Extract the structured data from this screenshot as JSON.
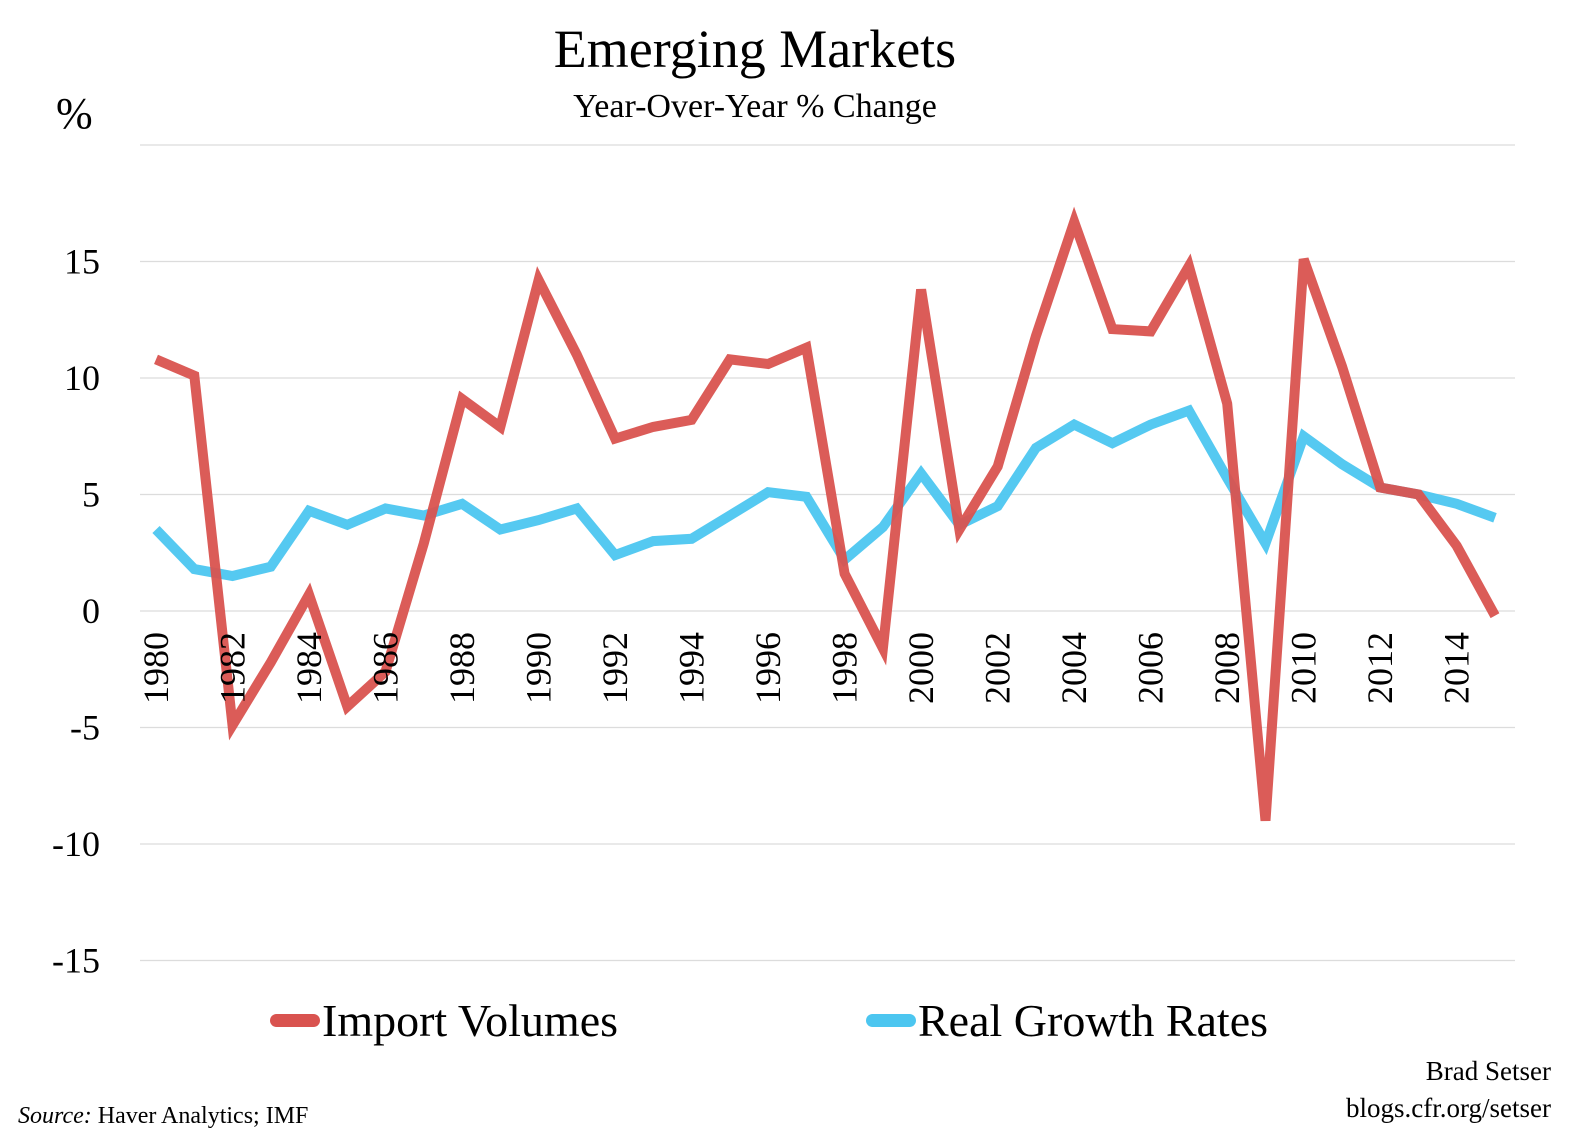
{
  "chart_data": {
    "type": "line",
    "title": "Emerging Markets",
    "subtitle": "Year-Over-Year % Change",
    "ylabel": "%",
    "xlabel": "",
    "x": [
      1980,
      1981,
      1982,
      1983,
      1984,
      1985,
      1986,
      1987,
      1988,
      1989,
      1990,
      1991,
      1992,
      1993,
      1994,
      1995,
      1996,
      1997,
      1998,
      1999,
      2000,
      2001,
      2002,
      2003,
      2004,
      2005,
      2006,
      2007,
      2008,
      2009,
      2010,
      2011,
      2012,
      2013,
      2014,
      2015
    ],
    "x_tick_labels": [
      "1980",
      "1982",
      "1984",
      "1986",
      "1988",
      "1990",
      "1992",
      "1994",
      "1996",
      "1998",
      "2000",
      "2002",
      "2004",
      "2006",
      "2008",
      "2010",
      "2012",
      "2014"
    ],
    "y_ticks": [
      15,
      10,
      5,
      0,
      -5,
      -10,
      -15
    ],
    "y_tick_labels": [
      "15",
      "10",
      "5",
      "0",
      "-5",
      "-10",
      "-15"
    ],
    "ylim": [
      -15,
      20
    ],
    "grid": true,
    "legend_position": "bottom",
    "series": [
      {
        "name": "Import Volumes",
        "color": "#d9534f",
        "values": [
          10.8,
          10.1,
          -4.9,
          -2.2,
          0.7,
          -4.1,
          -2.6,
          2.9,
          9.1,
          7.9,
          14.2,
          11.0,
          7.4,
          7.9,
          8.2,
          10.8,
          10.6,
          11.3,
          1.6,
          -1.6,
          13.8,
          3.5,
          6.2,
          11.8,
          16.7,
          12.1,
          12.0,
          14.8,
          8.9,
          -9.0,
          15.1,
          10.5,
          5.3,
          5.0,
          2.8,
          -0.2
        ]
      },
      {
        "name": "Real Growth Rates",
        "color": "#4cc6f0",
        "values": [
          3.5,
          1.8,
          1.5,
          1.9,
          4.3,
          3.7,
          4.4,
          4.1,
          4.6,
          3.5,
          3.9,
          4.4,
          2.4,
          3.0,
          3.1,
          4.1,
          5.1,
          4.9,
          2.2,
          3.6,
          5.9,
          3.7,
          4.5,
          7.0,
          8.0,
          7.2,
          8.0,
          8.6,
          5.7,
          2.9,
          7.5,
          6.3,
          5.3,
          5.0,
          4.6,
          4.0
        ]
      }
    ]
  },
  "credit": {
    "author": "Brad Setser",
    "url": "blogs.cfr.org/setser"
  },
  "source": {
    "label": "Source:",
    "text": " Haver Analytics; IMF"
  }
}
